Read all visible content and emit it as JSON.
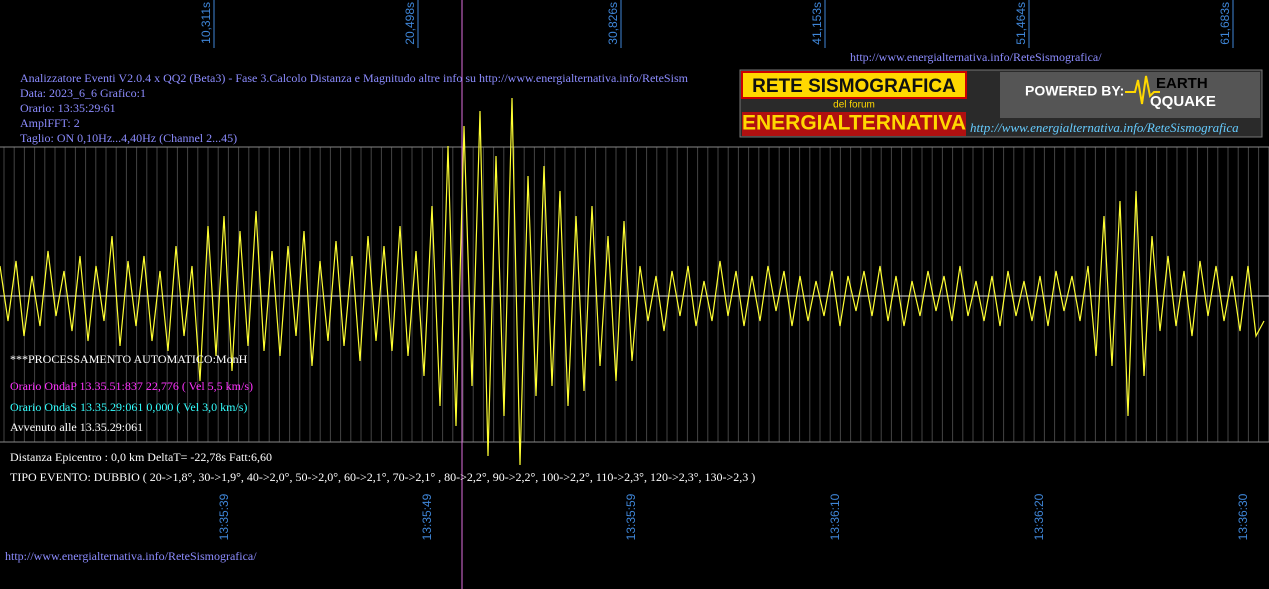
{
  "top_time_labels": [
    "10,311s",
    "20,498s",
    "30,826s",
    "41,153s",
    "51,464s",
    "61,683s"
  ],
  "bottom_time_labels": [
    "13:35:39",
    "13:35:49",
    "13:35:59",
    "13:36:10",
    "13:36:20",
    "13:36:30"
  ],
  "url_top": "http://www.energialternativa.info/ReteSismografica/",
  "info_lines": [
    "Analizzatore Eventi V2.0.4 x QQ2 (Beta3) - Fase 3.Calcolo Distanza e Magnitudo altre info su http://www.energialternativa.info/ReteSism",
    "Data: 2023_6_6 Grafico:1",
    "Orario: 13:35:29:61",
    "AmplFFT: 2",
    "Taglio: ON 0,10Hz...4,40Hz       (Channel 2...45)"
  ],
  "logo": {
    "title": "RETE SISMOGRAFICA",
    "subtitle": "del forum",
    "brand": "ENERGIALTERNATIVA",
    "powered": "POWERED BY:",
    "earth": "EARTH",
    "quake": "QQUAKE",
    "url": "http://www.energialternativa.info/ReteSismografica"
  },
  "processing": "***PROCESSAMENTO AUTOMATICO:MonH",
  "onda_p": "Orario OndaP 13.35.51:837  22,776 ( Vel 5,5 km/s)",
  "onda_s": "Orario OndaS 13.35.29:061  0,000 ( Vel 3,0 km/s)",
  "avvenuto": "Avvenuto alle 13.35.29:061",
  "distanza": "Distanza Epicentro : 0,0 km DeltaT= -22,78s  Fatt:6,60",
  "tipo_evento": "TIPO EVENTO: DUBBIO ( 20->1,8°, 30->1,9°, 40->2,0°, 50->2,0°, 60->2,1°, 70->2,1° , 80->2,2°, 90->2,2°, 100->2,2°, 110->2,3°, 120->2,3°, 130->2,3 )",
  "url_bottom": "http://www.energialternativa.info/ReteSismografica/",
  "waveform": {
    "color": "#ffff33",
    "values": [
      30,
      -25,
      35,
      -40,
      20,
      -30,
      45,
      -20,
      25,
      -35,
      40,
      -45,
      30,
      -25,
      60,
      -50,
      35,
      -30,
      40,
      -45,
      25,
      -55,
      50,
      -40,
      30,
      -85,
      70,
      -60,
      80,
      -75,
      65,
      -50,
      85,
      -55,
      45,
      -60,
      50,
      -40,
      65,
      -70,
      35,
      -45,
      55,
      -50,
      40,
      -65,
      60,
      -45,
      50,
      -55,
      70,
      -60,
      45,
      -80,
      90,
      -110,
      150,
      -130,
      170,
      -90,
      185,
      -160,
      140,
      -120,
      198,
      -169,
      120,
      -100,
      130,
      -90,
      105,
      -110,
      80,
      -95,
      90,
      -70,
      60,
      -85,
      75,
      -65,
      30,
      -25,
      20,
      -35,
      25,
      -20,
      30,
      -30,
      15,
      -25,
      35,
      -20,
      25,
      -30,
      20,
      -25,
      30,
      -15,
      25,
      -30,
      20,
      -25,
      15,
      -20,
      25,
      -30,
      20,
      -15,
      25,
      -20,
      30,
      -25,
      20,
      -30,
      15,
      -20,
      25,
      -15,
      20,
      -25,
      30,
      -20,
      15,
      -25,
      20,
      -30,
      25,
      -20,
      15,
      -25,
      20,
      -30,
      25,
      -15,
      20,
      -25,
      30,
      -60,
      80,
      -70,
      95,
      -120,
      105,
      -80,
      60,
      -35,
      40,
      -30,
      25,
      -40,
      35,
      -20,
      30,
      -25,
      20,
      -35,
      30,
      -40,
      -25
    ]
  }
}
